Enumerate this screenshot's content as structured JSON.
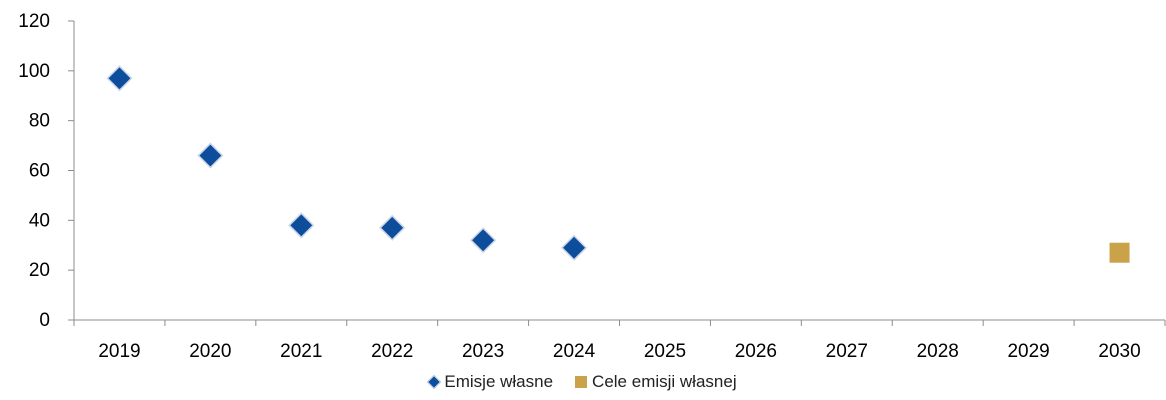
{
  "chart_data": {
    "type": "scatter",
    "categories": [
      "2019",
      "2020",
      "2021",
      "2022",
      "2023",
      "2024",
      "2025",
      "2026",
      "2027",
      "2028",
      "2029",
      "2030"
    ],
    "ylim": [
      0,
      120
    ],
    "yticks": [
      0,
      20,
      40,
      60,
      80,
      100,
      120
    ],
    "grid": false,
    "legend_placement": "bottom",
    "series": [
      {
        "name": "Emisje własne",
        "marker": "diamond",
        "color": "#0e4d9c",
        "points": [
          {
            "x": "2019",
            "y": 97
          },
          {
            "x": "2020",
            "y": 66
          },
          {
            "x": "2021",
            "y": 38
          },
          {
            "x": "2022",
            "y": 37
          },
          {
            "x": "2023",
            "y": 32
          },
          {
            "x": "2024",
            "y": 29
          }
        ]
      },
      {
        "name": "Cele emisji własnej",
        "marker": "square",
        "color": "#c9a24a",
        "points": [
          {
            "x": "2030",
            "y": 27
          }
        ]
      }
    ]
  }
}
